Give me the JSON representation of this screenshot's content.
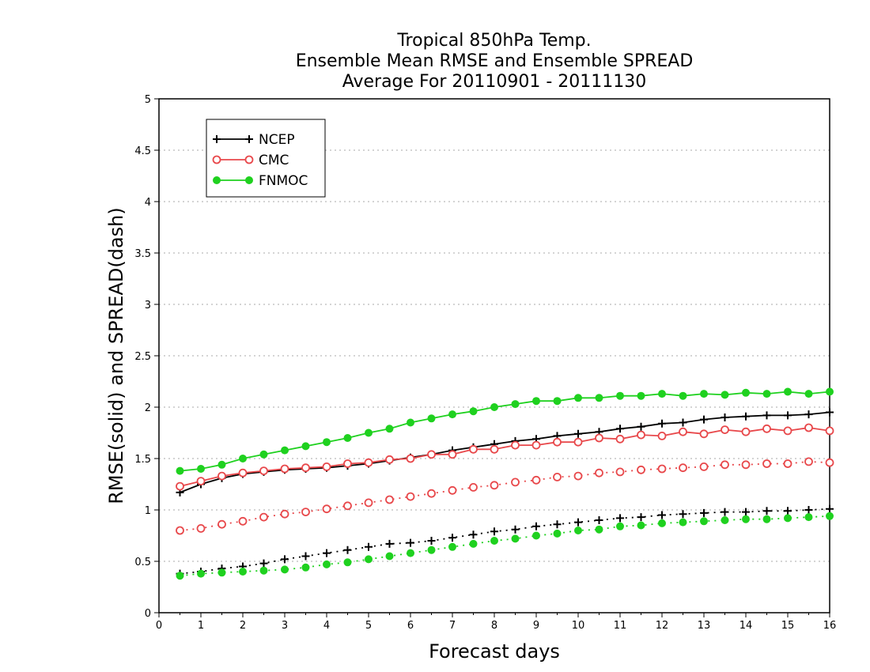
{
  "chart_data": {
    "type": "line",
    "title": [
      "Tropical 850hPa Temp.",
      "Ensemble Mean RMSE and Ensemble SPREAD",
      "Average For 20110901 - 20111130"
    ],
    "xlabel": "Forecast days",
    "ylabel": "RMSE(solid) and SPREAD(dash)",
    "xlim": [
      0,
      16
    ],
    "ylim": [
      0,
      5
    ],
    "x_ticks": [
      "0",
      "1",
      "2",
      "3",
      "4",
      "5",
      "6",
      "7",
      "8",
      "9",
      "10",
      "11",
      "12",
      "13",
      "14",
      "15",
      "16"
    ],
    "y_ticks": [
      "0",
      "0.5",
      "1",
      "1.5",
      "2",
      "2.5",
      "3",
      "3.5",
      "4",
      "4.5",
      "5"
    ],
    "grid": "horizontal dotted",
    "legend_position": "top-left",
    "x": [
      0.5,
      1,
      1.5,
      2,
      2.5,
      3,
      3.5,
      4,
      4.5,
      5,
      5.5,
      6,
      6.5,
      7,
      7.5,
      8,
      8.5,
      9,
      9.5,
      10,
      10.5,
      11,
      11.5,
      12,
      12.5,
      13,
      13.5,
      14,
      14.5,
      15,
      15.5,
      16
    ],
    "series": [
      {
        "name": "NCEP",
        "color": "#000000",
        "marker": "plus",
        "rmse": [
          1.17,
          1.25,
          1.31,
          1.35,
          1.37,
          1.39,
          1.4,
          1.41,
          1.43,
          1.45,
          1.48,
          1.51,
          1.54,
          1.58,
          1.61,
          1.64,
          1.67,
          1.69,
          1.72,
          1.74,
          1.76,
          1.79,
          1.81,
          1.84,
          1.85,
          1.88,
          1.9,
          1.91,
          1.92,
          1.92,
          1.93,
          1.95
        ],
        "spread": [
          0.38,
          0.4,
          0.43,
          0.45,
          0.48,
          0.52,
          0.55,
          0.58,
          0.61,
          0.64,
          0.67,
          0.68,
          0.7,
          0.73,
          0.76,
          0.79,
          0.81,
          0.84,
          0.86,
          0.88,
          0.9,
          0.92,
          0.93,
          0.95,
          0.96,
          0.97,
          0.98,
          0.98,
          0.99,
          0.99,
          1.0,
          1.01
        ]
      },
      {
        "name": "CMC",
        "color": "#e8484b",
        "marker": "open-circle",
        "rmse": [
          1.23,
          1.28,
          1.33,
          1.36,
          1.38,
          1.4,
          1.41,
          1.42,
          1.45,
          1.46,
          1.49,
          1.5,
          1.54,
          1.54,
          1.59,
          1.59,
          1.63,
          1.63,
          1.66,
          1.66,
          1.7,
          1.69,
          1.73,
          1.72,
          1.76,
          1.74,
          1.78,
          1.76,
          1.79,
          1.77,
          1.8,
          1.77
        ],
        "spread": [
          0.8,
          0.82,
          0.86,
          0.89,
          0.93,
          0.96,
          0.98,
          1.01,
          1.04,
          1.07,
          1.1,
          1.13,
          1.16,
          1.19,
          1.22,
          1.24,
          1.27,
          1.29,
          1.32,
          1.33,
          1.36,
          1.37,
          1.39,
          1.4,
          1.41,
          1.42,
          1.44,
          1.44,
          1.45,
          1.45,
          1.47,
          1.46
        ]
      },
      {
        "name": "FNMOC",
        "color": "#1fd11f",
        "marker": "filled-circle",
        "rmse": [
          1.38,
          1.4,
          1.44,
          1.5,
          1.54,
          1.58,
          1.62,
          1.66,
          1.7,
          1.75,
          1.79,
          1.85,
          1.89,
          1.93,
          1.96,
          2.0,
          2.03,
          2.06,
          2.06,
          2.09,
          2.09,
          2.11,
          2.11,
          2.13,
          2.11,
          2.13,
          2.12,
          2.14,
          2.13,
          2.15,
          2.13,
          2.15
        ],
        "spread": [
          0.36,
          0.38,
          0.39,
          0.4,
          0.41,
          0.42,
          0.44,
          0.47,
          0.49,
          0.52,
          0.55,
          0.58,
          0.61,
          0.64,
          0.67,
          0.7,
          0.72,
          0.75,
          0.77,
          0.8,
          0.81,
          0.84,
          0.85,
          0.87,
          0.88,
          0.89,
          0.9,
          0.91,
          0.91,
          0.92,
          0.93,
          0.94
        ]
      }
    ]
  }
}
